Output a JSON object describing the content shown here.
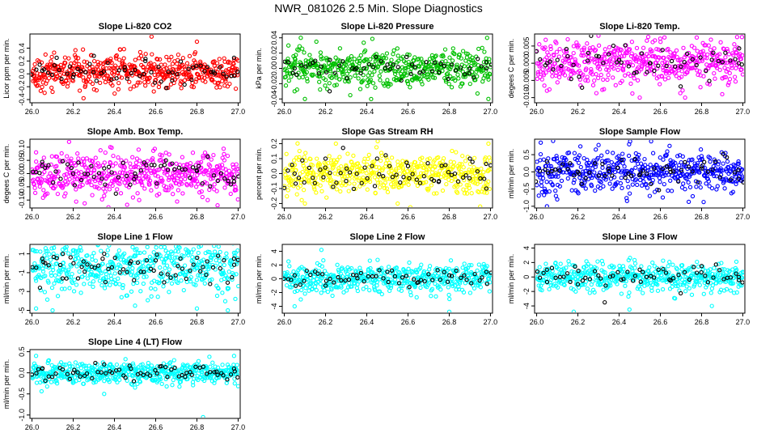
{
  "figure": {
    "title": "NWR_081026  2.5 Min. Slope Diagnostics",
    "x_tick_labels": [
      "26.0",
      "26.2",
      "26.4",
      "26.6",
      "26.8",
      "27.0"
    ],
    "x_ticks": [
      26.0,
      26.2,
      26.4,
      26.6,
      26.8,
      27.0
    ],
    "x_range": [
      25.99,
      27.01
    ]
  },
  "chart_data": [
    {
      "type": "scatter",
      "title": "Slope Li-820 CO2",
      "ylabel": "Licor ppm per min.",
      "color": "#ff0000",
      "highlight_color": "#000000",
      "ylim": [
        -0.45,
        0.62
      ],
      "yticks": [
        -0.4,
        -0.2,
        0.0,
        0.2,
        0.4
      ],
      "ytick_labels": [
        "-0.4",
        "-0.2",
        "0.0",
        "0.2",
        "0.4"
      ],
      "x_range": [
        26.0,
        27.0
      ],
      "n_points": 500,
      "n_highlight": 55,
      "center": 0.03,
      "spread": 0.13,
      "series": [
        {
          "name": "",
          "color": "#ff0000",
          "x": [
            26.01,
            26.1,
            26.25,
            26.38,
            26.5,
            26.58,
            26.65,
            26.8,
            26.9
          ],
          "y": [
            0.08,
            -0.28,
            -0.38,
            0.2,
            0.05,
            0.58,
            -0.22,
            0.5,
            -0.15
          ]
        }
      ],
      "highlight": {
        "color": "#000000",
        "x": [
          26.05,
          26.12,
          26.2,
          26.3,
          26.45,
          26.55,
          26.68,
          26.78,
          26.88,
          26.98
        ],
        "y": [
          0.05,
          0.25,
          -0.05,
          0.28,
          0.1,
          0.2,
          -0.1,
          0.1,
          0.03,
          0.25
        ]
      }
    },
    {
      "type": "scatter",
      "title": "Slope Li-820 Pressure",
      "ylabel": "kPa per min.",
      "color": "#00c000",
      "highlight_color": "#000000",
      "ylim": [
        -0.045,
        0.045
      ],
      "yticks": [
        -0.04,
        -0.02,
        0.0,
        0.02,
        0.04
      ],
      "ytick_labels": [
        "-0.04",
        "-0.02",
        "0.00",
        "0.02",
        "0.04"
      ],
      "x_range": [
        26.0,
        27.0
      ],
      "n_points": 500,
      "n_highlight": 50,
      "center": 0.0,
      "spread": 0.012,
      "series": [
        {
          "name": "",
          "color": "#00c000",
          "x": [
            26.02,
            26.05,
            26.08,
            26.1,
            26.32,
            26.6,
            26.99
          ],
          "y": [
            0.03,
            -0.03,
            0.04,
            -0.04,
            -0.035,
            -0.02,
            -0.04
          ]
        }
      ],
      "highlight": {
        "color": "#000000",
        "x": [
          26.05,
          26.15,
          26.22,
          26.35,
          26.5,
          26.62,
          26.75,
          26.9,
          26.98
        ],
        "y": [
          0.0,
          0.01,
          -0.03,
          0.0,
          0.005,
          0.005,
          -0.005,
          0.0,
          0.0
        ]
      }
    },
    {
      "type": "scatter",
      "title": "Slope Li-820 Temp.",
      "ylabel": "degees C per min.",
      "color": "#ff00ff",
      "highlight_color": "#000000",
      "ylim": [
        -0.0115,
        0.0085
      ],
      "yticks": [
        -0.01,
        -0.005,
        0.0,
        0.005
      ],
      "ytick_labels": [
        "-0.010",
        "-0.005",
        "0.000",
        "0.005"
      ],
      "x_range": [
        26.0,
        27.0
      ],
      "n_points": 500,
      "n_highlight": 50,
      "center": 0.0,
      "spread": 0.0035,
      "series": [
        {
          "name": "",
          "color": "#ff00ff",
          "x": [
            26.05,
            26.3,
            26.5,
            26.62,
            26.72,
            26.9
          ],
          "y": [
            -0.008,
            0.008,
            -0.01,
            0.0075,
            -0.01,
            -0.009
          ]
        }
      ],
      "highlight": {
        "color": "#000000",
        "x": [
          26.05,
          26.15,
          26.25,
          26.4,
          26.55,
          26.7,
          26.85,
          26.98
        ],
        "y": [
          0.0,
          0.002,
          0.003,
          0.001,
          0.0,
          -0.001,
          0.001,
          0.0
        ]
      }
    },
    {
      "type": "scatter",
      "title": "Slope Amb. Box Temp.",
      "ylabel": "degees C per min.",
      "color": "#ff00ff",
      "highlight_color": "#000000",
      "ylim": [
        -0.13,
        0.13
      ],
      "yticks": [
        -0.1,
        -0.05,
        0.0,
        0.05,
        0.1
      ],
      "ytick_labels": [
        "-0.10",
        "-0.05",
        "0.00",
        "0.05",
        "0.10"
      ],
      "x_range": [
        26.0,
        27.0
      ],
      "n_points": 500,
      "n_highlight": 60,
      "center": 0.0,
      "spread": 0.04,
      "series": [
        {
          "name": "",
          "color": "#ff00ff",
          "x": [
            26.02,
            26.18,
            26.38,
            26.52,
            26.9
          ],
          "y": [
            0.08,
            0.12,
            0.1,
            -0.1,
            -0.12
          ]
        }
      ],
      "highlight": {
        "color": "#000000",
        "x": [
          26.05,
          26.2,
          26.35,
          26.5,
          26.65,
          26.8,
          26.98
        ],
        "y": [
          0.03,
          0.0,
          0.02,
          0.0,
          0.05,
          0.01,
          -0.03
        ]
      }
    },
    {
      "type": "scatter",
      "title": "Slope Gas Stream RH",
      "ylabel": "percent per min.",
      "color": "#ffff00",
      "highlight_color": "#000000",
      "ylim": [
        -0.23,
        0.23
      ],
      "yticks": [
        -0.2,
        -0.1,
        0.0,
        0.1,
        0.2
      ],
      "ytick_labels": [
        "-0.2",
        "-0.1",
        "0.0",
        "0.1",
        "0.2"
      ],
      "x_range": [
        26.0,
        27.0
      ],
      "n_points": 500,
      "n_highlight": 60,
      "center": 0.0,
      "spread": 0.07,
      "series": [
        {
          "name": "",
          "color": "#ffff00",
          "x": [
            26.1,
            26.25,
            26.55,
            26.95,
            26.99
          ],
          "y": [
            -0.2,
            0.2,
            -0.2,
            -0.22,
            0.2
          ]
        }
      ],
      "highlight": {
        "color": "#000000",
        "x": [
          26.05,
          26.2,
          26.3,
          26.45,
          26.6,
          26.75,
          26.9,
          26.98
        ],
        "y": [
          0.0,
          0.1,
          -0.05,
          0.1,
          0.05,
          -0.05,
          0.1,
          -0.1
        ]
      }
    },
    {
      "type": "scatter",
      "title": "Slope Sample Flow",
      "ylabel": "ml/min per min.",
      "color": "#0000ff",
      "highlight_color": "#000000",
      "ylim": [
        -1.05,
        0.95
      ],
      "yticks": [
        -1.0,
        -0.5,
        0.0,
        0.5
      ],
      "ytick_labels": [
        "-1.0",
        "-0.5",
        "0.0",
        "0.5"
      ],
      "x_range": [
        26.0,
        27.0
      ],
      "n_points": 500,
      "n_highlight": 55,
      "center": 0.0,
      "spread": 0.3,
      "series": [
        {
          "name": "",
          "color": "#0000ff",
          "x": [
            26.02,
            26.05,
            26.08,
            26.1
          ],
          "y": [
            0.85,
            -1.0,
            0.9,
            -0.8
          ]
        }
      ],
      "highlight": {
        "color": "#000000",
        "x": [
          26.05,
          26.2,
          26.35,
          26.5,
          26.65,
          26.8,
          26.98
        ],
        "y": [
          0.3,
          0.0,
          0.1,
          -0.1,
          0.0,
          0.1,
          -0.2
        ]
      }
    },
    {
      "type": "scatter",
      "title": "Slope Line 1 Flow",
      "ylabel": "ml/min per min.",
      "color": "#00ffff",
      "highlight_color": "#000000",
      "ylim": [
        -5.3,
        2.0
      ],
      "yticks": [
        -5,
        -3,
        -1,
        1
      ],
      "ytick_labels": [
        "-5",
        "-3",
        "-1",
        "1"
      ],
      "x_range": [
        26.0,
        27.0
      ],
      "n_points": 500,
      "n_highlight": 60,
      "center": -0.5,
      "spread": 1.4,
      "series": [
        {
          "name": "",
          "color": "#00ffff",
          "x": [
            26.02,
            26.1,
            26.5,
            26.8,
            26.95
          ],
          "y": [
            -4.8,
            -5.0,
            -4.5,
            -4.8,
            -5.0
          ]
        }
      ],
      "highlight": {
        "color": "#000000",
        "x": [
          26.05,
          26.15,
          26.25,
          26.35,
          26.48,
          26.6,
          26.72,
          26.85,
          26.98
        ],
        "y": [
          0.5,
          1.0,
          0.2,
          1.0,
          0.2,
          0.3,
          0.5,
          0.2,
          0.5
        ]
      }
    },
    {
      "type": "scatter",
      "title": "Slope Line 2 Flow",
      "ylabel": "ml/min per min.",
      "color": "#00ffff",
      "highlight_color": "#000000",
      "ylim": [
        -5.0,
        5.0
      ],
      "yticks": [
        -4,
        -2,
        0,
        2,
        4
      ],
      "ytick_labels": [
        "-4",
        "-2",
        "0",
        "2",
        "4"
      ],
      "x_range": [
        26.0,
        27.0
      ],
      "n_points": 500,
      "n_highlight": 55,
      "center": 0.0,
      "spread": 1.0,
      "series": [
        {
          "name": "",
          "color": "#00ffff",
          "x": [
            26.05,
            26.08,
            26.18,
            26.8
          ],
          "y": [
            -4.0,
            -3.0,
            4.2,
            -4.8
          ]
        }
      ],
      "highlight": {
        "color": "#000000",
        "x": [
          26.05,
          26.2,
          26.35,
          26.5,
          26.65,
          26.8,
          26.98
        ],
        "y": [
          0.5,
          -1.0,
          0.5,
          1.0,
          -0.5,
          0.5,
          1.0
        ]
      }
    },
    {
      "type": "scatter",
      "title": "Slope Line 3 Flow",
      "ylabel": "ml/min per min.",
      "color": "#00ffff",
      "highlight_color": "#000000",
      "ylim": [
        -5.0,
        4.5
      ],
      "yticks": [
        -4,
        -2,
        0,
        2,
        4
      ],
      "ytick_labels": [
        "-4",
        "-2",
        "0",
        "2",
        "4"
      ],
      "x_range": [
        26.0,
        27.0
      ],
      "n_points": 500,
      "n_highlight": 55,
      "center": 0.0,
      "spread": 1.0,
      "series": [
        {
          "name": "",
          "color": "#00ffff",
          "x": [
            26.18,
            26.45,
            26.85
          ],
          "y": [
            -4.8,
            -4.5,
            -4.0
          ]
        }
      ],
      "highlight": {
        "color": "#000000",
        "x": [
          26.05,
          26.2,
          26.33,
          26.5,
          26.65,
          26.8,
          26.98
        ],
        "y": [
          1.0,
          -1.0,
          -3.5,
          1.0,
          -0.5,
          1.5,
          0.0
        ]
      }
    },
    {
      "type": "scatter",
      "title": "Slope Line 4 (LT) Flow",
      "ylabel": "ml/min per min.",
      "color": "#00ffff",
      "highlight_color": "#000000",
      "ylim": [
        -1.08,
        0.55
      ],
      "yticks": [
        -1.0,
        -0.5,
        0.0,
        0.5
      ],
      "ytick_labels": [
        "-1.0",
        "-0.5",
        "0.0",
        "0.5"
      ],
      "x_range": [
        26.0,
        27.0
      ],
      "n_points": 500,
      "n_highlight": 60,
      "center": 0.0,
      "spread": 0.13,
      "series": [
        {
          "name": "",
          "color": "#00ffff",
          "x": [
            26.02,
            26.35,
            26.5,
            26.83,
            26.98
          ],
          "y": [
            0.4,
            -0.5,
            -0.35,
            -1.05,
            0.4
          ]
        }
      ],
      "highlight": {
        "color": "#000000",
        "x": [
          26.05,
          26.2,
          26.35,
          26.48,
          26.62,
          26.75,
          26.9,
          26.98
        ],
        "y": [
          0.1,
          0.0,
          0.2,
          0.1,
          0.15,
          0.0,
          -0.05,
          0.1
        ]
      }
    }
  ]
}
